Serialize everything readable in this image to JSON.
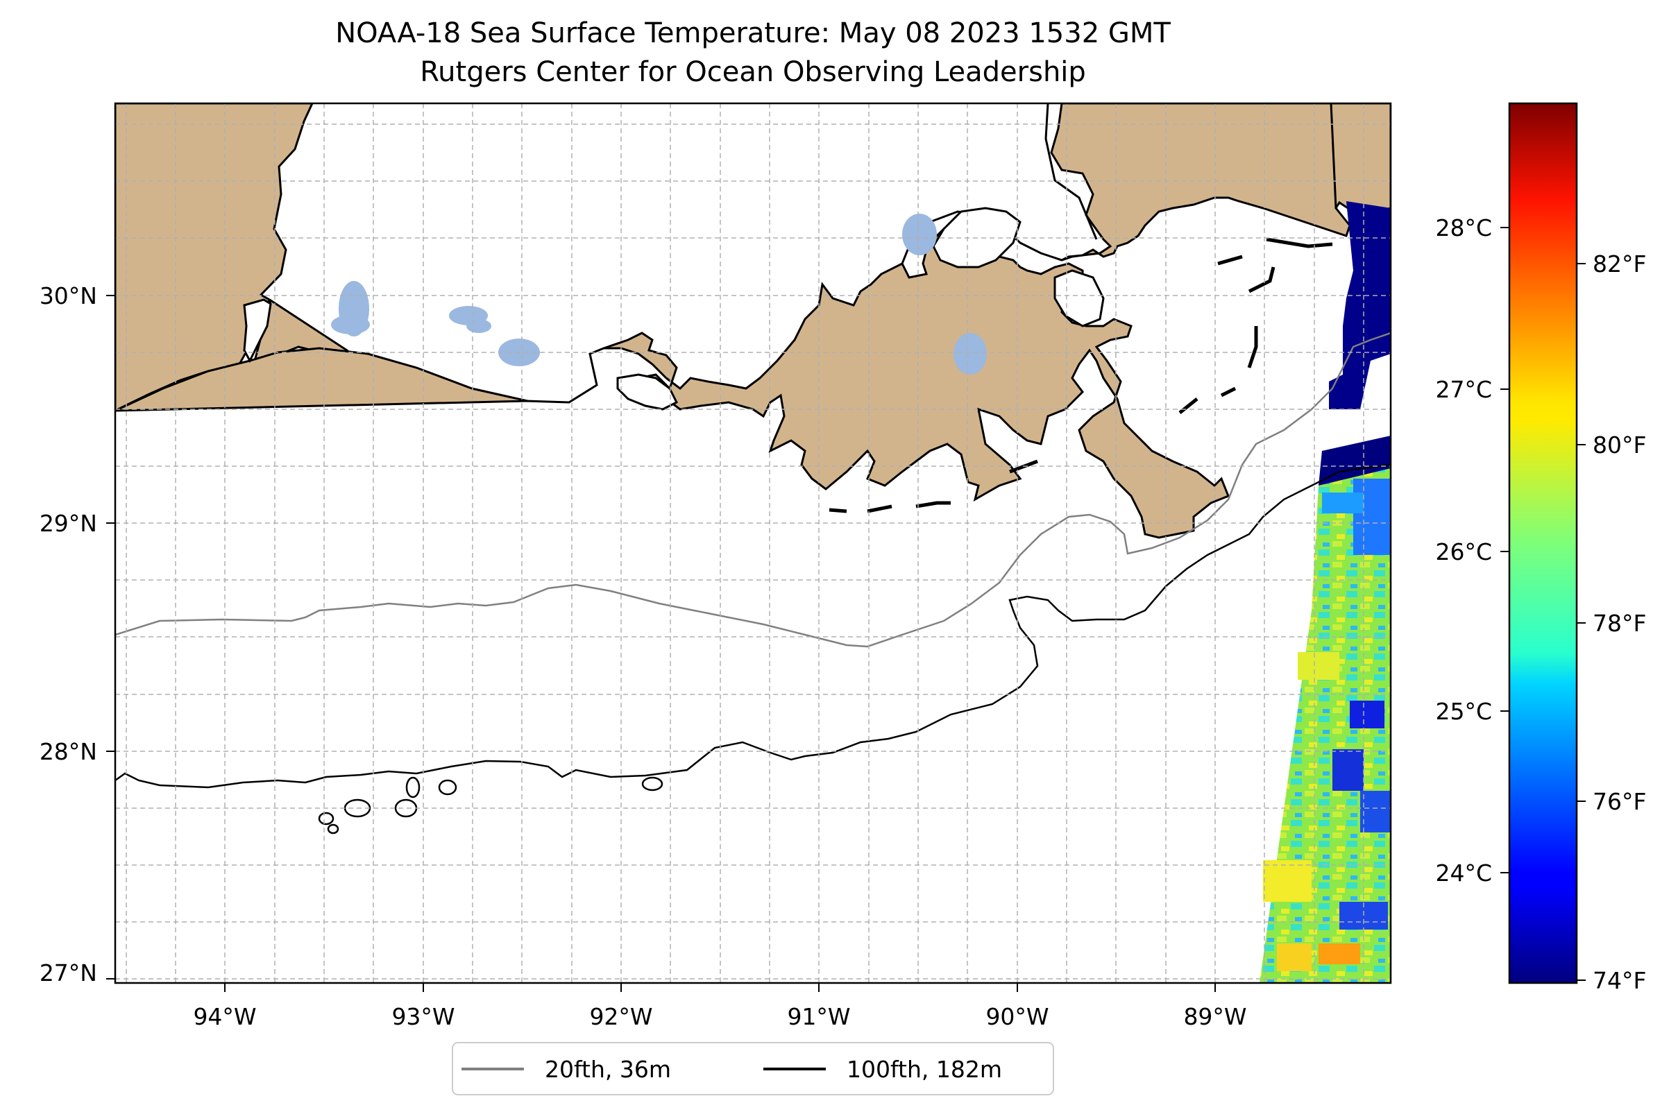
{
  "map": {
    "title": "NOAA-18 Sea Surface Temperature: May 08 2023 1532 GMT",
    "subtitle": "Rutgers Center for Ocean Observing Leadership",
    "lon_labels": [
      "94°W",
      "93°W",
      "92°W",
      "91°W",
      "90°W",
      "89°W"
    ],
    "lat_labels": [
      "30°N",
      "29°N",
      "28°N",
      "27°N"
    ],
    "extent": {
      "lon": [
        -94.55,
        -88.1
      ],
      "lat": [
        26.95,
        30.85
      ]
    },
    "gridlines": true,
    "land_color": "#d2b48c",
    "lake_color": "#9ab8e0"
  },
  "legend": {
    "items": [
      {
        "label": "20fth, 36m",
        "color": "#808080"
      },
      {
        "label": "100fth, 182m",
        "color": "#000000"
      }
    ]
  },
  "colorbar": {
    "colormap": "jet",
    "celsius_labels": [
      "28°C",
      "27°C",
      "26°C",
      "25°C",
      "24°C"
    ],
    "fahrenheit_labels": [
      "82°F",
      "80°F",
      "78°F",
      "76°F",
      "74°F"
    ],
    "range_f": [
      73.9,
      83.8
    ]
  }
}
